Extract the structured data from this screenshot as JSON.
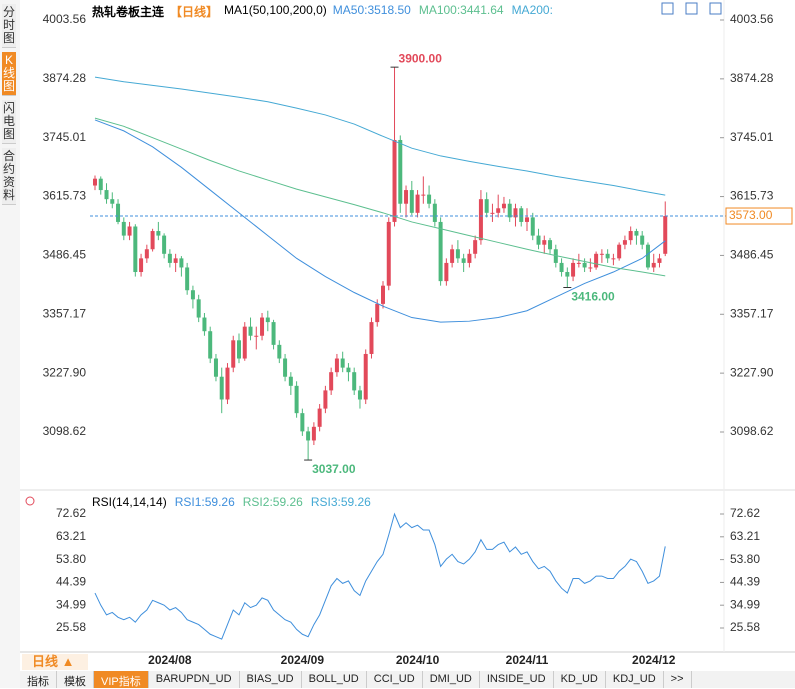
{
  "sidebar": [
    "分时图",
    "K线图",
    "闪电图",
    "合约资料"
  ],
  "header": {
    "title": "热轧卷板主连",
    "period": "【日线】",
    "indicator": "MA1(50,100,200,0)"
  },
  "footer": {
    "period": "日线",
    "tabs": [
      "指标",
      "模板",
      "VIP指标",
      "BARUPDN_UD",
      "BIAS_UD",
      "BOLL_UD",
      "CCI_UD",
      "DMI_UD",
      "INSIDE_UD",
      "KD_UD",
      "KDJ_UD",
      ">>"
    ]
  },
  "chart_data": [
    {
      "type": "candlestick",
      "up_color": "#e2495a",
      "down_color": "#4cb87c",
      "categories": [
        null,
        null,
        null,
        null,
        null,
        null,
        null,
        null,
        null,
        null,
        null,
        null,
        null,
        "2024/08",
        null,
        null,
        null,
        null,
        null,
        null,
        null,
        null,
        null,
        null,
        null,
        null,
        null,
        null,
        null,
        null,
        null,
        null,
        null,
        null,
        null,
        null,
        "2024/09",
        null,
        null,
        null,
        null,
        null,
        null,
        null,
        null,
        null,
        null,
        null,
        null,
        null,
        null,
        null,
        null,
        null,
        null,
        null,
        "2024/10",
        null,
        null,
        null,
        null,
        null,
        null,
        null,
        null,
        null,
        null,
        null,
        null,
        null,
        null,
        null,
        null,
        null,
        null,
        "2024/11",
        null,
        null,
        null,
        null,
        null,
        null,
        null,
        null,
        null,
        null,
        null,
        null,
        null,
        null,
        null,
        null,
        null,
        null,
        null,
        null,
        null,
        "2024/12",
        null,
        null
      ],
      "open": [
        3640,
        3655,
        3630,
        3610,
        3600,
        3560,
        3530,
        3550,
        3450,
        3480,
        3500,
        3540,
        3530,
        3490,
        3470,
        3480,
        3460,
        3410,
        3390,
        3350,
        3320,
        3260,
        3220,
        3170,
        3240,
        3300,
        3260,
        3330,
        3310,
        3310,
        3350,
        3340,
        3290,
        3260,
        3220,
        3200,
        3140,
        3100,
        3080,
        3110,
        3150,
        3190,
        3230,
        3260,
        3240,
        3230,
        3190,
        3170,
        3270,
        3340,
        3380,
        3420,
        3560,
        3740,
        3600,
        3630,
        3580,
        3620,
        3620,
        3600,
        3560,
        3430,
        3470,
        3500,
        3480,
        3470,
        3490,
        3520,
        3610,
        3580,
        3580,
        3590,
        3600,
        3570,
        3590,
        3560,
        3570,
        3530,
        3510,
        3520,
        3500,
        3470,
        3450,
        3440,
        3470,
        3470,
        3460,
        3460,
        3490,
        3490,
        3480,
        3480,
        3510,
        3520,
        3540,
        3530,
        3510,
        3460,
        3470,
        3490
      ],
      "high": [
        3662,
        3660,
        3645,
        3625,
        3610,
        3570,
        3560,
        3555,
        3490,
        3510,
        3545,
        3560,
        3535,
        3500,
        3490,
        3485,
        3470,
        3420,
        3400,
        3360,
        3330,
        3270,
        3240,
        3250,
        3310,
        3315,
        3340,
        3350,
        3330,
        3360,
        3365,
        3345,
        3300,
        3270,
        3230,
        3210,
        3150,
        3110,
        3120,
        3160,
        3200,
        3240,
        3270,
        3275,
        3250,
        3240,
        3200,
        3280,
        3350,
        3390,
        3430,
        3570,
        3900,
        3750,
        3640,
        3650,
        3630,
        3660,
        3640,
        3610,
        3570,
        3480,
        3510,
        3520,
        3490,
        3500,
        3530,
        3630,
        3625,
        3600,
        3620,
        3615,
        3610,
        3600,
        3595,
        3590,
        3580,
        3545,
        3530,
        3525,
        3510,
        3480,
        3460,
        3480,
        3490,
        3480,
        3480,
        3495,
        3500,
        3500,
        3490,
        3515,
        3530,
        3550,
        3545,
        3540,
        3515,
        3490,
        3490,
        3605
      ],
      "low": [
        3630,
        3620,
        3600,
        3590,
        3555,
        3520,
        3520,
        3440,
        3440,
        3470,
        3495,
        3520,
        3480,
        3460,
        3450,
        3440,
        3400,
        3370,
        3340,
        3310,
        3250,
        3210,
        3140,
        3160,
        3230,
        3250,
        3255,
        3300,
        3280,
        3300,
        3320,
        3280,
        3250,
        3210,
        3180,
        3130,
        3090,
        3037,
        3070,
        3100,
        3140,
        3180,
        3220,
        3230,
        3210,
        3180,
        3150,
        3160,
        3260,
        3330,
        3370,
        3410,
        3550,
        3580,
        3570,
        3575,
        3570,
        3600,
        3590,
        3550,
        3420,
        3420,
        3460,
        3470,
        3450,
        3460,
        3480,
        3510,
        3570,
        3560,
        3570,
        3580,
        3560,
        3550,
        3550,
        3540,
        3520,
        3500,
        3490,
        3490,
        3460,
        3440,
        3416,
        3430,
        3460,
        3450,
        3450,
        3455,
        3470,
        3470,
        3465,
        3475,
        3500,
        3510,
        3510,
        3500,
        3455,
        3450,
        3460,
        3485
      ],
      "close": [
        3655,
        3630,
        3610,
        3600,
        3560,
        3530,
        3550,
        3450,
        3480,
        3500,
        3540,
        3530,
        3490,
        3470,
        3480,
        3460,
        3410,
        3390,
        3350,
        3320,
        3260,
        3220,
        3170,
        3240,
        3300,
        3260,
        3330,
        3310,
        3310,
        3350,
        3340,
        3290,
        3260,
        3220,
        3200,
        3140,
        3100,
        3080,
        3110,
        3150,
        3190,
        3230,
        3260,
        3240,
        3230,
        3190,
        3170,
        3270,
        3340,
        3380,
        3420,
        3560,
        3740,
        3600,
        3630,
        3580,
        3620,
        3620,
        3600,
        3560,
        3430,
        3470,
        3500,
        3480,
        3470,
        3490,
        3520,
        3610,
        3580,
        3580,
        3590,
        3600,
        3570,
        3590,
        3560,
        3570,
        3530,
        3510,
        3520,
        3500,
        3470,
        3450,
        3440,
        3470,
        3470,
        3460,
        3460,
        3490,
        3490,
        3480,
        3480,
        3510,
        3520,
        3540,
        3530,
        3510,
        3460,
        3470,
        3480,
        3573
      ],
      "series": [
        {
          "name": "MA50:3518.50",
          "color": "#3f8fdc",
          "x": [
            0,
            5,
            10,
            15,
            20,
            25,
            30,
            35,
            40,
            45,
            50,
            55,
            60,
            65,
            70,
            75,
            80,
            85,
            90,
            95,
            99
          ],
          "values": [
            3784,
            3760,
            3725,
            3680,
            3630,
            3580,
            3530,
            3480,
            3440,
            3405,
            3375,
            3350,
            3340,
            3342,
            3350,
            3365,
            3395,
            3425,
            3450,
            3480,
            3518.5
          ]
        },
        {
          "name": "MA100:3441.64",
          "color": "#5cbf8f",
          "x": [
            0,
            5,
            10,
            15,
            20,
            25,
            30,
            35,
            40,
            45,
            50,
            55,
            60,
            65,
            70,
            75,
            80,
            85,
            90,
            95,
            99
          ],
          "values": [
            3788,
            3770,
            3745,
            3720,
            3695,
            3672,
            3652,
            3632,
            3615,
            3598,
            3580,
            3560,
            3545,
            3530,
            3515,
            3500,
            3486,
            3473,
            3460,
            3450,
            3441.64
          ]
        },
        {
          "name": "MA200:",
          "color": "#45a9d4",
          "x": [
            0,
            5,
            10,
            15,
            20,
            25,
            30,
            35,
            40,
            45,
            50,
            55,
            60,
            65,
            70,
            75,
            80,
            85,
            90,
            95,
            99
          ],
          "values": [
            3878,
            3868,
            3860,
            3852,
            3843,
            3834,
            3824,
            3810,
            3795,
            3775,
            3748,
            3722,
            3705,
            3693,
            3682,
            3672,
            3660,
            3650,
            3640,
            3628,
            3619
          ]
        }
      ],
      "price": {
        "value": 3573,
        "label": "3573.00"
      },
      "annotations": [
        {
          "value": 3900,
          "label": "3900.00",
          "color": "#e2495a"
        },
        {
          "value": 3037,
          "label": "3037.00",
          "color": "#4cb87c"
        },
        {
          "value": 3416,
          "label": "3416.00",
          "color": "#4cb87c"
        }
      ],
      "ylim": [
        2975.6,
        4036.5
      ],
      "yticks": [
        4003.56,
        3874.28,
        3745.01,
        3615.73,
        3486.45,
        3357.17,
        {
          "value": 3227.9,
          "label": "3227.90"
        },
        3098.62
      ]
    },
    {
      "type": "line",
      "title": "RSI(14,14,14)",
      "color": "#3f8fdc",
      "legend": [
        {
          "name": "RSI1:59.26",
          "color": "#3f8fdc"
        },
        {
          "name": "RSI2:59.26",
          "color": "#5cbf8f"
        },
        {
          "name": "RSI3:59.26",
          "color": "#45a9d4"
        }
      ],
      "values": [
        40,
        35,
        31,
        32,
        30,
        29,
        30,
        28,
        31,
        33,
        37,
        36,
        35,
        33,
        34,
        32,
        29,
        28,
        27,
        25,
        23,
        22,
        21,
        27,
        33,
        31,
        36,
        34,
        35,
        38,
        37,
        33,
        31,
        29,
        28,
        25,
        23,
        22,
        27,
        31,
        37,
        43,
        46,
        44,
        45,
        41,
        39,
        45,
        49,
        53,
        56,
        64,
        72.6,
        67,
        69,
        67,
        68,
        66,
        66,
        60,
        51,
        54,
        56,
        53,
        52,
        54,
        57,
        62,
        58,
        58,
        60,
        61,
        57,
        59,
        56,
        57,
        53,
        50,
        51,
        49,
        45,
        42,
        40,
        46,
        46,
        44,
        45,
        47,
        47,
        46,
        46,
        49,
        51,
        54,
        53,
        49,
        44,
        45,
        47,
        59.26
      ],
      "ylim": [
        17.33,
        80.46
      ],
      "yticks": [
        72.62,
        63.21,
        {
          "value": 53.8,
          "label": "53.80"
        },
        44.39,
        34.99,
        25.58
      ]
    }
  ]
}
